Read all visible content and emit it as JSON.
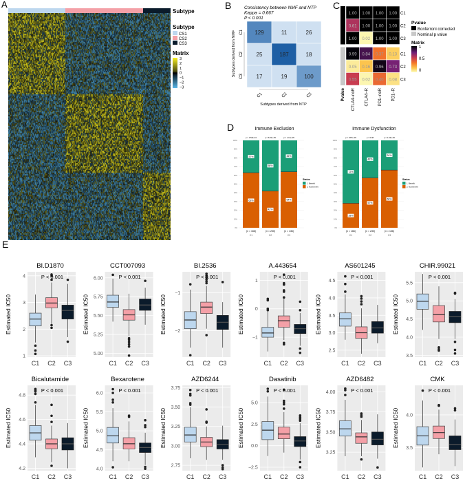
{
  "panel_labels": {
    "a": "A",
    "b": "B",
    "c": "C",
    "d": "D",
    "e": "E"
  },
  "colors": {
    "c1": "#bdd7ee",
    "c2": "#f4a0a7",
    "c3": "#0b1b2b",
    "benefit": "#1b9e77",
    "nonbenefit": "#d95f02",
    "panel_bg": "#ebebeb"
  },
  "chart_data": [
    {
      "type": "heatmap",
      "panel": "A",
      "annotation_label": "Subtype",
      "legend_subtype_title": "Subtype",
      "subtypes": [
        "CS1",
        "CS2",
        "CS3"
      ],
      "legend_matrix_title": "Matrix",
      "matrix_ticks": [
        "3",
        "2",
        "1",
        "0",
        "−1",
        "−2",
        "−3"
      ],
      "value_range": [
        -3,
        3
      ]
    },
    {
      "type": "heatmap",
      "panel": "B",
      "title": "Consistency between NMF and NTP",
      "kappa": "Kappa = 0.667",
      "pvalue": "P < 0.001",
      "ylabel": "Subtypes derived from NMF",
      "xlabel": "Subtypes derived from NTP",
      "rows": [
        "C1",
        "C2",
        "C3"
      ],
      "cols": [
        "C1",
        "C2",
        "C3"
      ],
      "values": [
        [
          129,
          11,
          26
        ],
        [
          25,
          187,
          18
        ],
        [
          17,
          19,
          100
        ]
      ]
    },
    {
      "type": "heatmap",
      "panel": "C",
      "rows": [
        "C1",
        "C2",
        "C3",
        "C1",
        "C2",
        "C3"
      ],
      "cols": [
        "CTLA4−noR",
        "CTLA4−R",
        "PD1−noR",
        "PD1−R"
      ],
      "pvalue_col_label": "Pvalue",
      "values": [
        [
          1.0,
          1.0,
          1.0,
          1.0
        ],
        [
          0.61,
          1.0,
          1.0,
          1.0
        ],
        [
          1.0,
          0.02,
          1.0,
          1.0
        ],
        [
          0.99,
          0.84,
          0.37,
          0.13
        ],
        [
          0.05,
          0.16,
          0.96,
          0.73
        ],
        [
          0.55,
          0.02,
          0.4,
          0.08
        ]
      ],
      "labels": [
        [
          "1.00",
          "1.00",
          "1.00",
          "1.00"
        ],
        [
          "0.61",
          "1.00",
          "1.00",
          "1.00"
        ],
        [
          "1.00",
          "0.02",
          "1.00",
          "1.00"
        ],
        [
          "0.99",
          "0.84",
          "0.37",
          "0.13"
        ],
        [
          "0.05",
          "0.16",
          "0.96",
          "0.73"
        ],
        [
          "0.55",
          "0.02",
          "0.40",
          "0.08"
        ]
      ],
      "row_pvalue_type": [
        "bonferroni",
        "bonferroni",
        "bonferroni",
        "nominal",
        "nominal",
        "nominal"
      ],
      "legend": {
        "pvalue_title": "Pvalue",
        "bonferroni": "Bonferroni corrected",
        "nominal": "Nominal p value",
        "matrix_title": "Matrix",
        "ticks": [
          "1",
          "0.5",
          "0"
        ]
      }
    },
    {
      "type": "bar",
      "panel": "D",
      "stacked": true,
      "panels": [
        {
          "title": "Immune Exclusion",
          "categories": [
            "C1",
            "C2",
            "C3"
          ],
          "n": [
            "(n = 166)",
            "(n = 230)",
            "(n = 136)"
          ],
          "pvalues": [
            "p = 3.58e-04",
            "p = 6.81e-05",
            "p = 1.13e-05"
          ],
          "benefit_pct": [
            37,
            58,
            36
          ],
          "nonbenefit_pct": [
            63,
            42,
            64
          ]
        },
        {
          "title": "Immune Dysfunction",
          "categories": [
            "C1",
            "C2",
            "C3"
          ],
          "n": [
            "(n = 166)",
            "(n = 230)",
            "(n = 136)"
          ],
          "pvalues": [
            "p = 8.87e-09",
            "p = 0.08",
            "p = 1.93e-06"
          ],
          "benefit_pct": [
            72,
            43,
            34
          ],
          "nonbenefit_pct": [
            28,
            57,
            66
          ]
        }
      ],
      "legend_title": "Status",
      "legend_items": [
        "1. Benefit",
        "2. Nonbenefit"
      ],
      "yticks": [
        "0%",
        "10%",
        "20%",
        "30%",
        "40%",
        "50%",
        "60%",
        "70%",
        "80%",
        "90%",
        "100%"
      ]
    },
    {
      "type": "box",
      "panel": "E",
      "ylabel": "Estimated IC50",
      "categories": [
        "C1",
        "C2",
        "C3"
      ],
      "pvalue": "P < 0.001",
      "drugs": [
        {
          "name": "BI.D1870",
          "ylim": [
            0.95,
            4.15
          ],
          "ticks": [
            1,
            2,
            3,
            4
          ],
          "tick_labels": [
            "1",
            "2",
            "3",
            "4"
          ],
          "boxes": [
            [
              1.5,
              2.12,
              2.38,
              2.6,
              3.3
            ],
            [
              2.2,
              2.8,
              2.98,
              3.18,
              3.75
            ],
            [
              1.7,
              2.38,
              2.7,
              2.9,
              3.7
            ]
          ],
          "outliers": [
            [
              1.38,
              1.2,
              1.07
            ],
            [
              3.85,
              4.0,
              4.05,
              2.15,
              2.05
            ],
            [
              3.85,
              1.53
            ]
          ]
        },
        {
          "name": "CCT007093",
          "ylim": [
            4.95,
            6.08
          ],
          "ticks": [
            5,
            5.25,
            5.5,
            5.75,
            6
          ],
          "tick_labels": [
            "5.00",
            "5.25",
            "5.50",
            "5.75",
            "6.00"
          ],
          "boxes": [
            [
              5.42,
              5.61,
              5.68,
              5.77,
              5.99
            ],
            [
              5.23,
              5.44,
              5.51,
              5.58,
              5.79
            ],
            [
              5.38,
              5.57,
              5.64,
              5.72,
              5.87
            ]
          ],
          "outliers": [
            [
              6.04
            ],
            [
              5.2,
              5.18,
              5.15,
              5.12,
              5.09,
              4.97
            ],
            [
              5.96
            ]
          ]
        },
        {
          "name": "BI.2536",
          "ylim": [
            -2.7,
            -0.45
          ],
          "ticks": [
            -2,
            -1
          ],
          "tick_labels": [
            "−2",
            "−1"
          ],
          "boxes": [
            [
              -2.45,
              -1.95,
              -1.72,
              -1.5,
              -0.92
            ],
            [
              -1.95,
              -1.55,
              -1.38,
              -1.25,
              -0.82
            ],
            [
              -2.45,
              -1.97,
              -1.78,
              -1.6,
              -1.25
            ]
          ],
          "outliers": [
            [
              -0.78,
              -2.65
            ],
            [
              -0.5,
              -0.55,
              -0.6,
              -0.65,
              -0.7,
              -0.75,
              -2.12
            ],
            [
              -0.72
            ]
          ]
        },
        {
          "name": "A.443654",
          "ylim": [
            -1.7,
            1.3
          ],
          "ticks": [
            -1,
            0,
            1
          ],
          "tick_labels": [
            "−1",
            "0",
            "1"
          ],
          "boxes": [
            [
              -1.5,
              -1.0,
              -0.85,
              -0.65,
              -0.1
            ],
            [
              -1.1,
              -0.65,
              -0.42,
              -0.25,
              0.35
            ],
            [
              -1.3,
              -0.87,
              -0.7,
              -0.55,
              -0.15
            ]
          ],
          "outliers": [
            [
              0.35,
              0.3,
              0.0,
              -0.05
            ],
            [
              0.4,
              0.6,
              0.65,
              0.85,
              0.9,
              1.2,
              -1.2,
              -1.25
            ],
            [
              0.25,
              -0.05,
              -1.4,
              -1.55
            ]
          ]
        },
        {
          "name": "AS601245",
          "ylim": [
            2.3,
            4.75
          ],
          "ticks": [
            2.5,
            3,
            3.5,
            4,
            4.5
          ],
          "tick_labels": [
            "2.5",
            "3.0",
            "3.5",
            "4.0",
            "4.5"
          ],
          "boxes": [
            [
              2.8,
              3.19,
              3.4,
              3.57,
              4.1
            ],
            [
              2.4,
              2.84,
              3.0,
              3.17,
              3.7
            ],
            [
              2.7,
              2.99,
              3.14,
              3.32,
              3.8
            ]
          ],
          "outliers": [
            [
              4.62,
              4.4,
              4.18
            ],
            [
              3.82,
              3.9,
              3.98,
              4.05
            ],
            []
          ]
        },
        {
          "name": "CHIR.99021",
          "ylim": [
            3.45,
            5.8
          ],
          "ticks": [
            3.5,
            4,
            4.5,
            5,
            5.5
          ],
          "tick_labels": [
            "3.5",
            "4.0",
            "4.5",
            "5.0",
            "5.5"
          ],
          "boxes": [
            [
              4.2,
              4.77,
              4.99,
              5.19,
              5.74
            ],
            [
              3.95,
              4.42,
              4.62,
              4.87,
              5.4
            ],
            [
              3.95,
              4.4,
              4.57,
              4.71,
              5.05
            ]
          ],
          "outliers": [
            [],
            [
              3.72,
              3.67,
              3.63
            ],
            [
              5.22,
              5.2,
              3.87,
              3.65,
              3.55
            ]
          ]
        },
        {
          "name": "Bicalutamide",
          "ylim": [
            4.18,
            4.88
          ],
          "ticks": [
            4.2,
            4.4,
            4.6,
            4.8
          ],
          "tick_labels": [
            "4.2",
            "4.4",
            "4.6",
            "4.8"
          ],
          "boxes": [
            [
              4.29,
              4.43,
              4.49,
              4.55,
              4.72
            ],
            [
              4.25,
              4.36,
              4.4,
              4.44,
              4.55
            ],
            [
              4.2,
              4.35,
              4.4,
              4.45,
              4.57
            ]
          ],
          "outliers": [
            [
              4.85,
              4.84,
              4.83,
              4.81,
              4.74
            ],
            [
              4.72,
              4.63,
              4.58,
              4.22
            ],
            []
          ]
        },
        {
          "name": "Bexarotene",
          "ylim": [
            3.95,
            6.2
          ],
          "ticks": [
            4,
            4.5,
            5,
            5.5,
            6
          ],
          "tick_labels": [
            "4.0",
            "4.5",
            "5.0",
            "5.5",
            "6.0"
          ],
          "boxes": [
            [
              4.2,
              4.68,
              4.87,
              5.09,
              5.6
            ],
            [
              4.2,
              4.52,
              4.66,
              4.82,
              5.25
            ],
            [
              4.1,
              4.43,
              4.56,
              4.68,
              4.95
            ]
          ],
          "outliers": [
            [
              6.1,
              6.0,
              5.82,
              5.75,
              4.04
            ],
            [
              5.4,
              5.37
            ],
            [
              5.28,
              5.15,
              5.1,
              4.05,
              4.0
            ]
          ]
        },
        {
          "name": "AZD6244",
          "ylim": [
            2.68,
            3.78
          ],
          "ticks": [
            2.75,
            3,
            3.25,
            3.5,
            3.75
          ],
          "tick_labels": [
            "2.75",
            "3.00",
            "3.25",
            "3.50",
            "3.75"
          ],
          "boxes": [
            [
              2.84,
              3.05,
              3.14,
              3.24,
              3.5
            ],
            [
              2.82,
              2.99,
              3.05,
              3.11,
              3.25
            ],
            [
              2.82,
              2.96,
              3.02,
              3.08,
              3.26
            ]
          ],
          "outliers": [
            [
              3.72,
              3.67,
              3.65,
              3.55,
              3.53
            ],
            [
              3.47,
              3.31,
              3.3
            ],
            [
              2.75,
              2.72,
              2.7
            ]
          ]
        },
        {
          "name": "Dasatinib",
          "ylim": [
            -2.9,
            7
          ],
          "ticks": [
            -2.5,
            0,
            2.5,
            5
          ],
          "tick_labels": [
            "−2.5",
            "0.0",
            "2.5",
            "5.0"
          ],
          "boxes": [
            [
              -1.2,
              0.7,
              1.8,
              2.8,
              5.7
            ],
            [
              -0.8,
              0.8,
              1.35,
              2.15,
              3.9
            ],
            [
              -1.6,
              -0.1,
              0.55,
              1.05,
              2.6
            ]
          ],
          "outliers": [
            [
              6.6,
              6.3
            ],
            [
              6.5,
              5.2,
              5.0,
              4.8,
              4.3
            ],
            [
              3.5,
              3.3,
              3.1,
              2.9,
              -1.9,
              -2.5
            ]
          ]
        },
        {
          "name": "AZD6482",
          "ylim": [
            3.02,
            4.08
          ],
          "ticks": [
            3.25,
            3.5,
            3.75,
            4
          ],
          "tick_labels": [
            "3.25",
            "3.50",
            "3.75",
            "4.00"
          ],
          "boxes": [
            [
              3.2,
              3.45,
              3.54,
              3.64,
              3.9
            ],
            [
              3.2,
              3.36,
              3.44,
              3.49,
              3.65
            ],
            [
              3.17,
              3.34,
              3.41,
              3.5,
              3.72
            ]
          ],
          "outliers": [
            [
              4.04,
              4.02,
              3.96
            ],
            [
              3.73,
              3.71,
              3.69,
              3.16
            ],
            [
              3.06
            ]
          ]
        },
        {
          "name": "CMK",
          "ylim": [
            3.15,
            4.45
          ],
          "ticks": [
            3.5,
            4
          ],
          "tick_labels": [
            "3.5",
            "4.0"
          ],
          "boxes": [
            [
              3.2,
              3.54,
              3.68,
              3.82,
              4.22
            ],
            [
              3.4,
              3.64,
              3.73,
              3.83,
              4.08
            ],
            [
              3.22,
              3.47,
              3.55,
              3.68,
              3.93
            ]
          ],
          "outliers": [
            [
              4.37
            ],
            [
              4.15,
              4.14
            ],
            [
              4.1,
              4.07
            ]
          ]
        }
      ]
    }
  ]
}
